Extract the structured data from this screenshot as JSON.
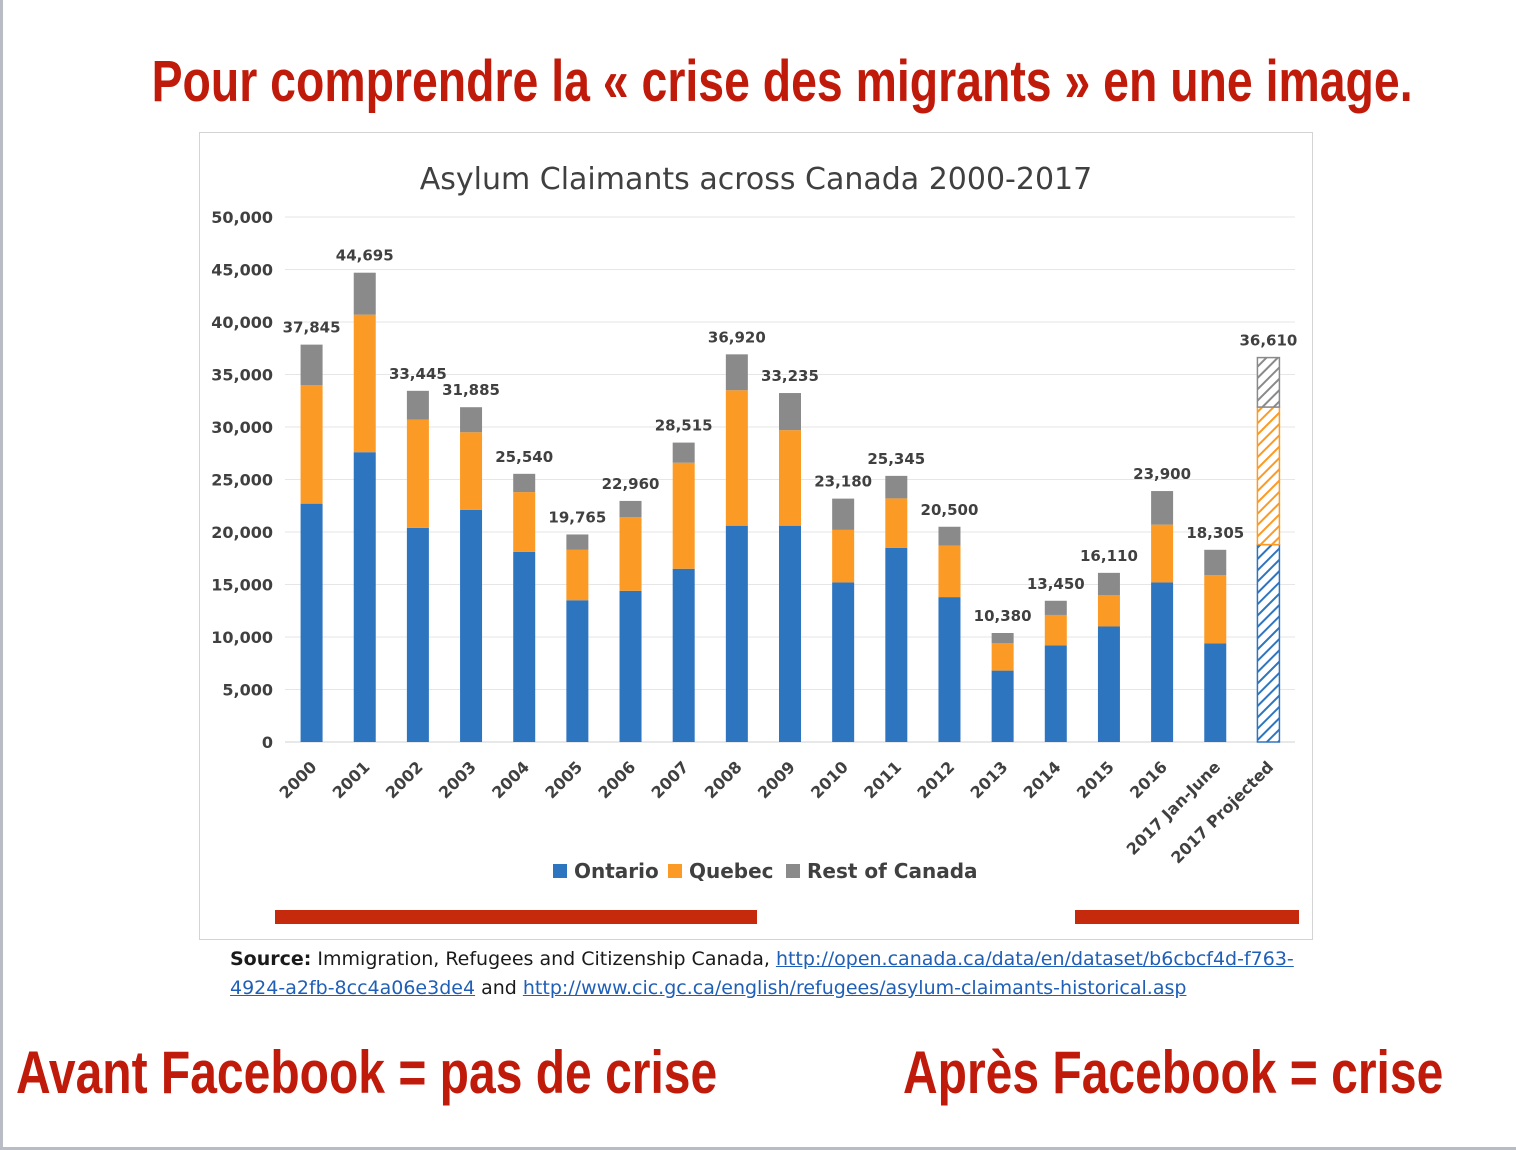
{
  "headlines": {
    "top": "Pour comprendre la « crise des migrants » en une image.",
    "before": "Avant Facebook = pas de crise",
    "after": "Après Facebook = crise"
  },
  "colors": {
    "headline": "#c01a0a",
    "underline": "#c62a0c",
    "ontario": "#2e75c0",
    "quebec": "#fb9a24",
    "rest": "#8a8a8a",
    "link": "#1f5fb8"
  },
  "source": {
    "label": "Source:",
    "text": " Immigration, Refugees and Citizenship Canada, ",
    "link1": "http://open.canada.ca/data/en/dataset/b6cbcf4d-f763-4924-a2fb-8cc4a06e3de4",
    "and": " and ",
    "link2": "http://www.cic.gc.ca/english/refugees/asylum-claimants-historical.asp"
  },
  "chart_data": {
    "type": "bar",
    "stacked": true,
    "title": "Asylum Claimants across Canada 2000-2017",
    "xlabel": "",
    "ylabel": "",
    "ylim": [
      0,
      50000
    ],
    "yticks": [
      0,
      5000,
      10000,
      15000,
      20000,
      25000,
      30000,
      35000,
      40000,
      45000,
      50000
    ],
    "ytick_labels": [
      "0",
      "5,000",
      "10,000",
      "15,000",
      "20,000",
      "25,000",
      "30,000",
      "35,000",
      "40,000",
      "45,000",
      "50,000"
    ],
    "grid": true,
    "legend_position": "bottom",
    "categories": [
      "2000",
      "2001",
      "2002",
      "2003",
      "2004",
      "2005",
      "2006",
      "2007",
      "2008",
      "2009",
      "2010",
      "2011",
      "2012",
      "2013",
      "2014",
      "2015",
      "2016",
      "2017 Jan-June",
      "2017 Projected"
    ],
    "series": [
      {
        "name": "Ontario",
        "values": [
          22700,
          27600,
          20400,
          22100,
          18100,
          13500,
          14400,
          16500,
          20600,
          20600,
          15200,
          18500,
          13800,
          6800,
          9200,
          11000,
          15200,
          9400,
          18800
        ]
      },
      {
        "name": "Quebec",
        "values": [
          11300,
          13100,
          10300,
          7400,
          5700,
          4800,
          7000,
          10100,
          12900,
          9100,
          5000,
          4700,
          4900,
          2600,
          2900,
          3000,
          5500,
          6500,
          13100
        ]
      },
      {
        "name": "Rest of Canada",
        "values": [
          3845,
          3995,
          2745,
          2385,
          1740,
          1465,
          1560,
          1915,
          3420,
          3535,
          2980,
          2145,
          1800,
          980,
          1350,
          2110,
          3200,
          2405,
          4710
        ]
      }
    ],
    "totals": [
      37845,
      44695,
      33445,
      31885,
      25540,
      19765,
      22960,
      28515,
      36920,
      33235,
      23180,
      25345,
      20500,
      10380,
      13450,
      16110,
      23900,
      18305,
      36610
    ],
    "total_labels": [
      "37,845",
      "44,695",
      "33,445",
      "31,885",
      "25,540",
      "19,765",
      "22,960",
      "28,515",
      "36,920",
      "33,235",
      "23,180",
      "25,345",
      "20,500",
      "10,380",
      "13,450",
      "16,110",
      "23,900",
      "18,305",
      "36,610"
    ],
    "projected": [
      false,
      false,
      false,
      false,
      false,
      false,
      false,
      false,
      false,
      false,
      false,
      false,
      false,
      false,
      false,
      false,
      false,
      false,
      true
    ]
  }
}
